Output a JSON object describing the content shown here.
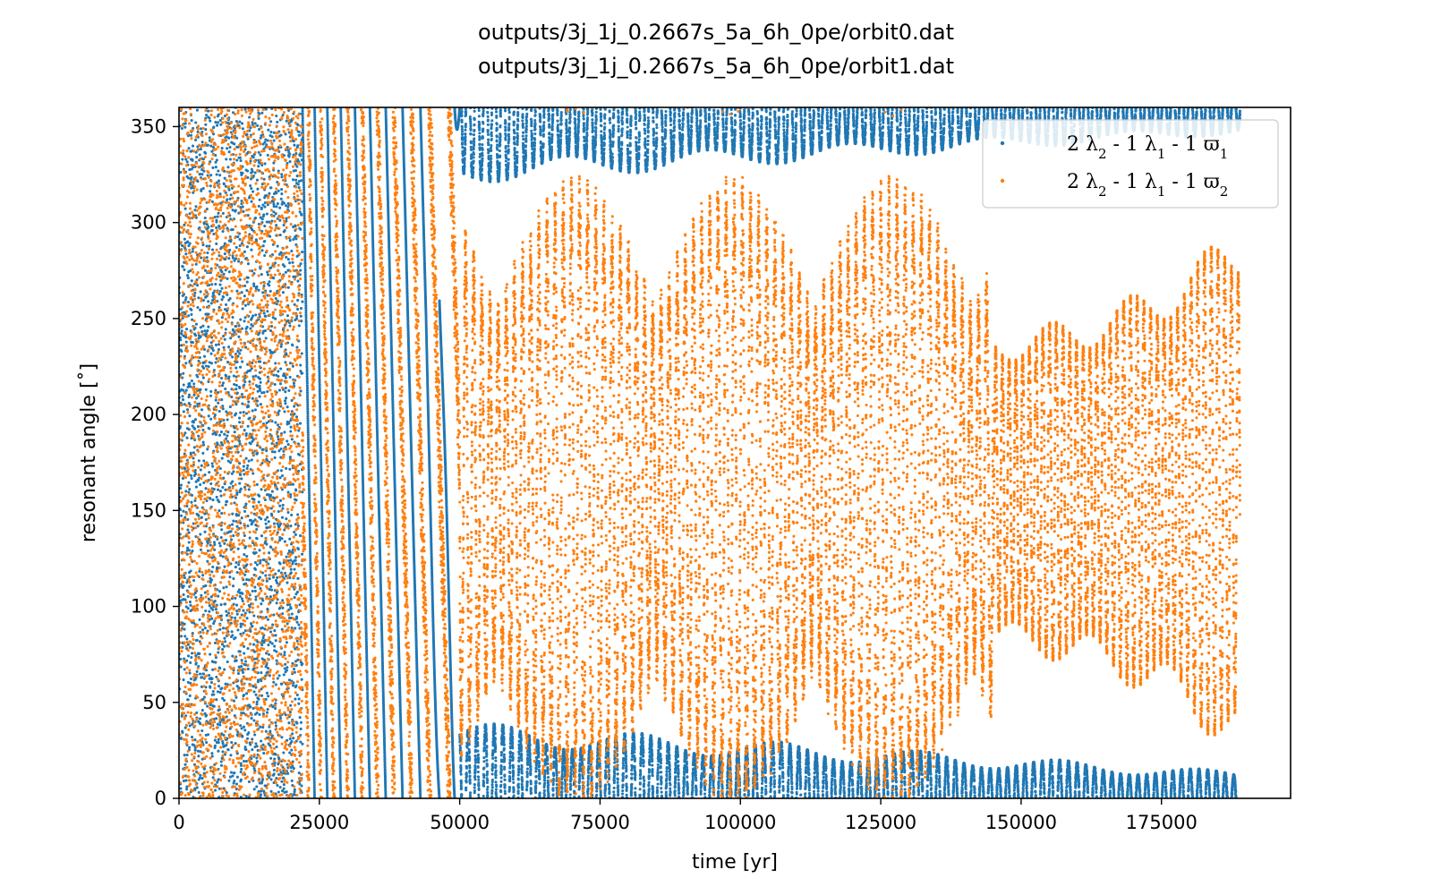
{
  "chart_data": {
    "type": "scatter",
    "title_lines": [
      "outputs/3j_1j_0.2667s_5a_6h_0pe/orbit0.dat",
      "outputs/3j_1j_0.2667s_5a_6h_0pe/orbit1.dat"
    ],
    "xlabel": "time [yr]",
    "ylabel": "resonant angle [˚]",
    "xlim": [
      0,
      198000
    ],
    "ylim": [
      0,
      360
    ],
    "x_ticks": [
      0,
      25000,
      50000,
      75000,
      100000,
      125000,
      150000,
      175000
    ],
    "y_ticks": [
      0,
      50,
      100,
      150,
      200,
      250,
      300,
      350
    ],
    "grid": false,
    "legend_position": "upper right",
    "time_end": 189000,
    "series": [
      {
        "name": "2 λ2 - 1 λ1 - 1 ϖ1",
        "legend_parts": [
          "2 λ",
          "2",
          " - 1 λ",
          "1",
          " - 1 ϖ",
          "1"
        ],
        "color": "#1f77b4",
        "behavior_phases": [
          {
            "x_range": [
              0,
              22000
            ],
            "mode": "chaotic",
            "y_range": [
              0,
              360
            ]
          },
          {
            "x_range": [
              22000,
              50000
            ],
            "mode": "circulating",
            "y_range": [
              0,
              360
            ]
          },
          {
            "x_range": [
              50000,
              189000
            ],
            "mode": "librating_about_0",
            "amplitude_start": 40,
            "amplitude_end": 14
          }
        ]
      },
      {
        "name": "2 λ2 - 1 λ1 - 1 ϖ2",
        "legend_parts": [
          "2 λ",
          "2",
          " - 1 λ",
          "1",
          " - 1 ϖ",
          "2"
        ],
        "color": "#ff7f0e",
        "behavior_phases": [
          {
            "x_range": [
              0,
              22000
            ],
            "mode": "chaotic",
            "y_range": [
              0,
              360
            ]
          },
          {
            "x_range": [
              22000,
              50000
            ],
            "mode": "circulating",
            "y_range": [
              0,
              360
            ]
          },
          {
            "x_range": [
              50000,
              145000
            ],
            "mode": "wide_libration",
            "center": 160,
            "amplitude": 150
          },
          {
            "x_range": [
              145000,
              189000
            ],
            "mode": "librating_about_160",
            "amplitude_start": 85,
            "amplitude_end": 140
          }
        ]
      }
    ]
  }
}
